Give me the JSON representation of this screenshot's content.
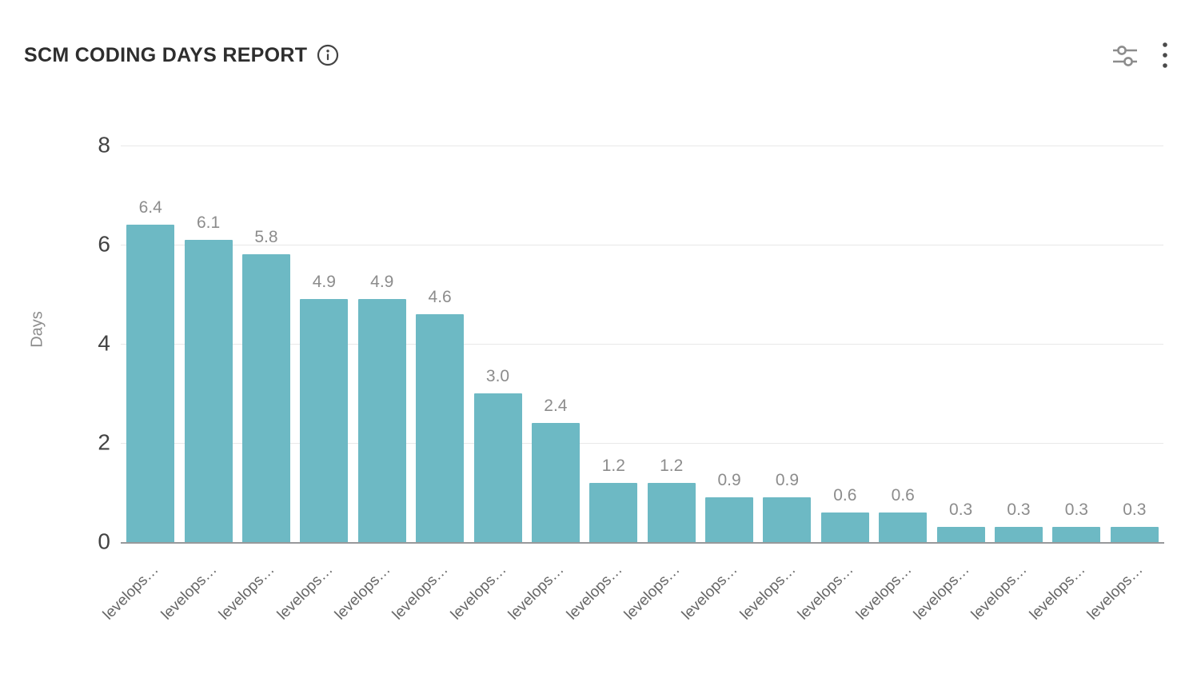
{
  "header": {
    "title": "SCM CODING DAYS REPORT",
    "title_info_icon": "info-circle-icon",
    "actions": [
      {
        "name": "filters",
        "icon": "sliders-icon"
      },
      {
        "name": "more-options",
        "icon": "kebab-menu-icon"
      }
    ]
  },
  "colors": {
    "bar": "#6db9c4",
    "grid": "#e8e8e8",
    "axis_line": "#97999b",
    "y_tick_text": "#434343",
    "value_label_text": "#8c8c8c",
    "x_tick_text": "#666666",
    "title_text": "#2e2e2e",
    "icon_gray": "#8c8c8c",
    "icon_dark": "#4a4a4a"
  },
  "chart_data": {
    "type": "bar",
    "title": "SCM CODING DAYS REPORT",
    "xlabel": "",
    "ylabel": "Days",
    "ylim": [
      0,
      8
    ],
    "yticks": [
      0,
      2,
      4,
      6,
      8
    ],
    "grid": true,
    "legend": false,
    "bar_color": "#6db9c4",
    "categories": [
      "levelops…",
      "levelops…",
      "levelops…",
      "levelops…",
      "levelops…",
      "levelops…",
      "levelops…",
      "levelops…",
      "levelops…",
      "levelops…",
      "levelops…",
      "levelops…",
      "levelops…",
      "levelops…",
      "levelops…",
      "levelops…",
      "levelops…",
      "levelops…"
    ],
    "values": [
      6.4,
      6.1,
      5.8,
      4.9,
      4.9,
      4.6,
      3.0,
      2.4,
      1.2,
      1.2,
      0.9,
      0.9,
      0.6,
      0.6,
      0.3,
      0.3,
      0.3,
      0.3
    ],
    "value_labels": [
      "6.4",
      "6.1",
      "5.8",
      "4.9",
      "4.9",
      "4.6",
      "3.0",
      "2.4",
      "1.2",
      "1.2",
      "0.9",
      "0.9",
      "0.6",
      "0.6",
      "0.3",
      "0.3",
      "0.3",
      "0.3"
    ]
  }
}
